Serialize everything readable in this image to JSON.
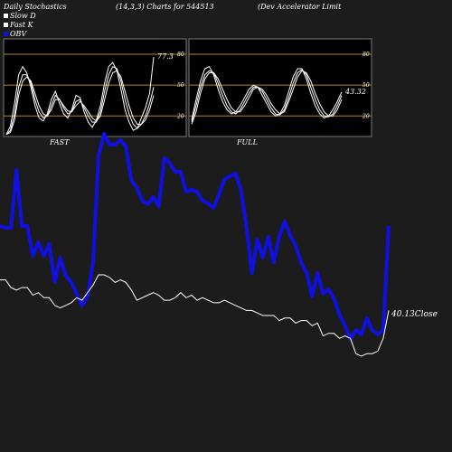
{
  "header": {
    "title": "Daily Stochastics",
    "params": "(14,3,3) Charts for 544513",
    "company": "(Dev   Accelerator Limit"
  },
  "legend": [
    {
      "label": "Slow  D",
      "color": "#ffffff"
    },
    {
      "label": "Fast K",
      "color": "#ffffff"
    },
    {
      "label": "OBV",
      "color": "#1010e0"
    }
  ],
  "colors": {
    "background": "#1c1c1c",
    "panel_background": "#000000",
    "panel_border": "#777777",
    "level_line": "#b8860b",
    "stoch_line": "#ffffff",
    "obv_line": "#1010e0",
    "price_line": "#ffffff"
  },
  "chart_data": [
    {
      "type": "line",
      "panel": "FAST",
      "label": "FAST",
      "ylim": [
        0,
        95
      ],
      "yticks": [
        20,
        50,
        80
      ],
      "level_lines": [
        20,
        50,
        80
      ],
      "end_label": "77.3",
      "series": [
        {
          "values": [
            2,
            10,
            32,
            60,
            68,
            62,
            48,
            30,
            18,
            15,
            22,
            36,
            44,
            32,
            22,
            18,
            26,
            40,
            38,
            24,
            14,
            9,
            16,
            30,
            52,
            68,
            72,
            64,
            46,
            26,
            14,
            6,
            8,
            18,
            28,
            42,
            77.3
          ]
        },
        {
          "values": [
            2,
            6,
            22,
            48,
            60,
            60,
            52,
            36,
            24,
            18,
            20,
            30,
            40,
            36,
            28,
            22,
            24,
            34,
            36,
            28,
            20,
            14,
            14,
            24,
            44,
            60,
            68,
            66,
            54,
            36,
            22,
            12,
            8,
            12,
            20,
            32,
            48
          ]
        },
        {
          "values": [
            2,
            4,
            16,
            40,
            54,
            58,
            54,
            42,
            30,
            22,
            20,
            26,
            36,
            36,
            30,
            25,
            24,
            30,
            34,
            30,
            24,
            18,
            15,
            20,
            36,
            52,
            62,
            64,
            58,
            44,
            30,
            18,
            12,
            12,
            16,
            26,
            40
          ]
        }
      ]
    },
    {
      "type": "line",
      "panel": "FULL",
      "label": "FULL",
      "ylim": [
        0,
        95
      ],
      "yticks": [
        20,
        50,
        80
      ],
      "level_lines": [
        20,
        50,
        80
      ],
      "end_label": "43.32",
      "series": [
        {
          "values": [
            16,
            36,
            54,
            66,
            68,
            60,
            46,
            34,
            26,
            22,
            24,
            30,
            38,
            46,
            50,
            48,
            40,
            32,
            24,
            20,
            22,
            30,
            44,
            58,
            66,
            66,
            56,
            42,
            30,
            22,
            18,
            20,
            26,
            34,
            43.32
          ]
        },
        {
          "values": [
            14,
            30,
            48,
            60,
            64,
            62,
            52,
            40,
            30,
            24,
            22,
            26,
            34,
            42,
            48,
            48,
            44,
            36,
            28,
            22,
            21,
            26,
            38,
            52,
            62,
            65,
            60,
            48,
            36,
            26,
            20,
            19,
            22,
            30,
            40
          ]
        },
        {
          "values": [
            12,
            24,
            42,
            56,
            62,
            62,
            56,
            46,
            36,
            28,
            24,
            24,
            30,
            38,
            46,
            48,
            46,
            40,
            32,
            26,
            22,
            24,
            34,
            46,
            58,
            64,
            62,
            54,
            42,
            32,
            24,
            20,
            20,
            26,
            36
          ]
        }
      ]
    },
    {
      "type": "line",
      "panel": "main",
      "close_label": "40.13Close",
      "series": [
        {
          "name": "OBV",
          "values": [
            250,
            252,
            252,
            188,
            250,
            250,
            283,
            268,
            283,
            270,
            312,
            285,
            305,
            312,
            325,
            338,
            328,
            290,
            172,
            148,
            160,
            160,
            155,
            162,
            200,
            208,
            222,
            226,
            218,
            228,
            175,
            180,
            190,
            190,
            212,
            210,
            212,
            222,
            225,
            230,
            215,
            198,
            195,
            192,
            210,
            250,
            302,
            265,
            285,
            262,
            290,
            262,
            245,
            260,
            272,
            290,
            302,
            328,
            302,
            325,
            320,
            330,
            348,
            360,
            375,
            365,
            370,
            352,
            365,
            370,
            365,
            250
          ]
        },
        {
          "name": "Price",
          "values": [
            60,
            60,
            57,
            56,
            57,
            57,
            54,
            55,
            53,
            53,
            50,
            49,
            50,
            51,
            53,
            52,
            55,
            58,
            62,
            62,
            61,
            59,
            60,
            59,
            56,
            52,
            53,
            54,
            55,
            54,
            52,
            52,
            53,
            55,
            53,
            54,
            52,
            53,
            52,
            51,
            51,
            52,
            51,
            50,
            49,
            48,
            48,
            47,
            46,
            46,
            46,
            44,
            45,
            45,
            43,
            44,
            44,
            42,
            43,
            38,
            39,
            39,
            37,
            38,
            37,
            31,
            30,
            31,
            31,
            32,
            37,
            48
          ]
        }
      ]
    }
  ]
}
